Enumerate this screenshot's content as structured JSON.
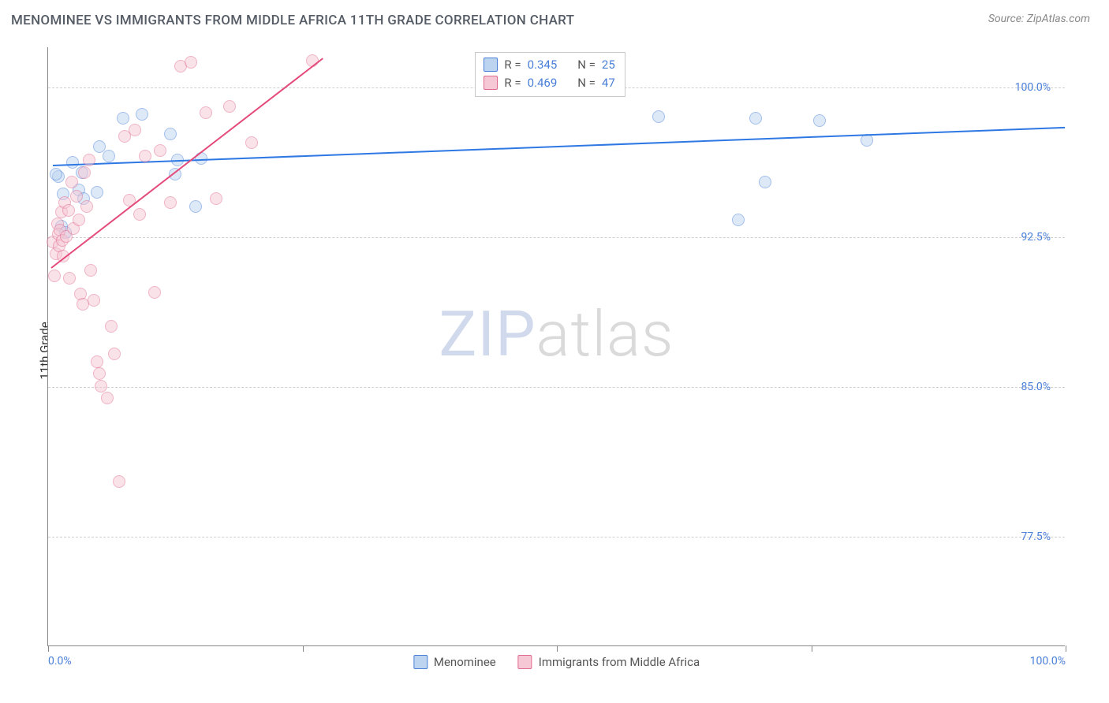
{
  "title": "MENOMINEE VS IMMIGRANTS FROM MIDDLE AFRICA 11TH GRADE CORRELATION CHART",
  "source": "Source: ZipAtlas.com",
  "y_axis_label": "11th Grade",
  "watermark": {
    "zip": "ZIP",
    "atlas": "atlas"
  },
  "chart": {
    "type": "scatter",
    "xlim": [
      0,
      100
    ],
    "ylim": [
      72,
      102
    ],
    "background_color": "#ffffff",
    "grid_color": "#d0d0d0",
    "axis_color": "#888888",
    "x_ticks": [
      0,
      25,
      50,
      75,
      100
    ],
    "x_tick_labels": [
      "0.0%",
      "",
      "",
      "",
      "100.0%"
    ],
    "y_ticks": [
      77.5,
      85.0,
      92.5,
      100.0
    ],
    "y_tick_labels": [
      "77.5%",
      "85.0%",
      "92.5%",
      "100.0%"
    ],
    "tick_label_color": "#4a7fd8",
    "marker_radius": 8,
    "marker_opacity": 0.5,
    "marker_stroke_width": 1.2,
    "line_width": 2
  },
  "stats_box": {
    "left_pct": 42,
    "rows": [
      {
        "swatch_fill": "#bcd4f0",
        "swatch_stroke": "#4a7fd8",
        "r_label": "R =",
        "r_value": "0.345",
        "n_label": "N =",
        "n_value": "25"
      },
      {
        "swatch_fill": "#f6c7d4",
        "swatch_stroke": "#e06a8d",
        "r_label": "R =",
        "r_value": "0.469",
        "n_label": "N =",
        "n_value": "47"
      }
    ]
  },
  "legend_bottom": [
    {
      "swatch_fill": "#bcd4f0",
      "swatch_stroke": "#4a7fd8",
      "label": "Menominee"
    },
    {
      "swatch_fill": "#f6c7d4",
      "swatch_stroke": "#e06a8d",
      "label": "Immigrants from Middle Africa"
    }
  ],
  "series": [
    {
      "name": "Menominee",
      "fill": "#bcd4f0",
      "stroke": "#4a7fd8",
      "points": [
        [
          1.0,
          95.5
        ],
        [
          1.3,
          93.0
        ],
        [
          1.5,
          94.6
        ],
        [
          2.4,
          96.2
        ],
        [
          0.8,
          95.6
        ],
        [
          3.0,
          94.8
        ],
        [
          3.3,
          95.7
        ],
        [
          5.0,
          97.0
        ],
        [
          7.4,
          98.4
        ],
        [
          9.2,
          98.6
        ],
        [
          12.0,
          97.6
        ],
        [
          12.5,
          95.6
        ],
        [
          12.7,
          96.3
        ],
        [
          14.5,
          94.0
        ],
        [
          15.0,
          96.4
        ],
        [
          1.7,
          92.7
        ],
        [
          3.5,
          94.4
        ],
        [
          4.8,
          94.7
        ],
        [
          6.0,
          96.5
        ],
        [
          60.0,
          98.5
        ],
        [
          67.8,
          93.3
        ],
        [
          69.5,
          98.4
        ],
        [
          70.5,
          95.2
        ],
        [
          75.8,
          98.3
        ],
        [
          80.5,
          97.3
        ]
      ],
      "reg": {
        "x1": 0.5,
        "y1": 96.1,
        "x2": 100,
        "y2": 98.0,
        "color": "#2e78e4"
      }
    },
    {
      "name": "Immigrants from Middle Africa",
      "fill": "#f6c7d4",
      "stroke": "#e06a8d",
      "points": [
        [
          0.5,
          92.2
        ],
        [
          0.6,
          90.5
        ],
        [
          0.8,
          91.6
        ],
        [
          0.9,
          93.1
        ],
        [
          1.0,
          92.6
        ],
        [
          1.1,
          92.0
        ],
        [
          1.2,
          92.8
        ],
        [
          1.3,
          93.7
        ],
        [
          1.4,
          92.3
        ],
        [
          1.5,
          91.5
        ],
        [
          1.6,
          94.2
        ],
        [
          1.8,
          92.5
        ],
        [
          2.0,
          93.8
        ],
        [
          2.1,
          90.4
        ],
        [
          2.3,
          95.2
        ],
        [
          2.5,
          92.9
        ],
        [
          2.8,
          94.5
        ],
        [
          3.0,
          93.3
        ],
        [
          3.2,
          89.6
        ],
        [
          3.4,
          89.1
        ],
        [
          3.6,
          95.7
        ],
        [
          3.8,
          94.0
        ],
        [
          4.0,
          96.3
        ],
        [
          4.2,
          90.8
        ],
        [
          4.5,
          89.3
        ],
        [
          4.8,
          86.2
        ],
        [
          5.0,
          85.6
        ],
        [
          5.2,
          85.0
        ],
        [
          5.8,
          84.4
        ],
        [
          6.2,
          88.0
        ],
        [
          6.5,
          86.6
        ],
        [
          7.0,
          80.2
        ],
        [
          7.5,
          97.5
        ],
        [
          8.0,
          94.3
        ],
        [
          8.5,
          97.8
        ],
        [
          9.0,
          93.6
        ],
        [
          9.5,
          96.5
        ],
        [
          10.5,
          89.7
        ],
        [
          11.0,
          96.8
        ],
        [
          12.0,
          94.2
        ],
        [
          13.0,
          101.0
        ],
        [
          14.0,
          101.2
        ],
        [
          15.5,
          98.7
        ],
        [
          16.5,
          94.4
        ],
        [
          17.8,
          99.0
        ],
        [
          20.0,
          97.2
        ],
        [
          26.0,
          101.3
        ]
      ],
      "reg": {
        "x1": 0.3,
        "y1": 91.0,
        "x2": 27,
        "y2": 101.5,
        "color": "#e44a7a"
      }
    }
  ]
}
